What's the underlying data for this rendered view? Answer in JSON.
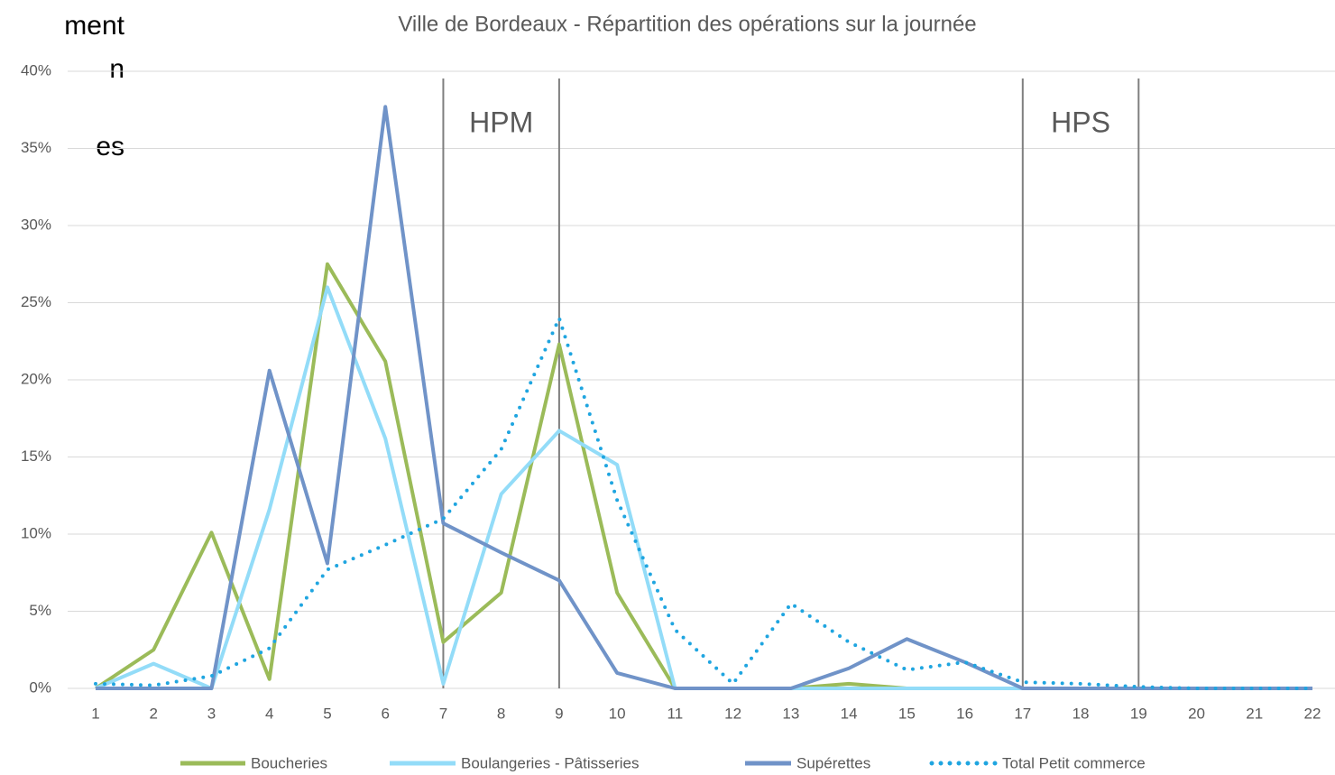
{
  "chart_data": {
    "type": "line",
    "title": "Ville de Bordeaux - Répartition des opérations sur la journée",
    "clipped_text": [
      "ment",
      "n",
      "es"
    ],
    "categories": [
      1,
      2,
      3,
      4,
      5,
      6,
      7,
      8,
      9,
      10,
      11,
      12,
      13,
      14,
      15,
      16,
      17,
      18,
      19,
      20,
      21,
      22
    ],
    "series": [
      {
        "name": "Boucheries",
        "color": "#9bbb59",
        "style": "solid",
        "values": [
          0,
          2.5,
          10.1,
          0.6,
          27.5,
          21.2,
          3.0,
          6.2,
          22.3,
          6.2,
          0,
          0,
          0,
          0.3,
          0,
          0,
          0,
          0,
          0,
          0,
          0,
          0
        ]
      },
      {
        "name": "Boulangeries - Pâtisseries",
        "color": "#93dcf8",
        "style": "solid",
        "values": [
          0,
          1.6,
          0,
          11.6,
          26.0,
          16.2,
          0.3,
          12.6,
          16.7,
          14.5,
          0,
          0,
          0,
          0,
          0,
          0,
          0,
          0,
          0,
          0,
          0,
          0
        ]
      },
      {
        "name": "Supérettes",
        "color": "#7093c8",
        "style": "solid",
        "values": [
          0,
          0,
          0,
          20.6,
          8.1,
          37.7,
          10.7,
          8.8,
          7.0,
          1.0,
          0,
          0,
          0,
          1.3,
          3.2,
          1.7,
          0,
          0,
          0,
          0,
          0,
          0
        ]
      },
      {
        "name": "Total Petit commerce",
        "color": "#1fa5e0",
        "style": "dotted",
        "values": [
          0.3,
          0.2,
          0.8,
          2.6,
          7.7,
          9.3,
          11.0,
          15.5,
          24.0,
          12.2,
          3.8,
          0.3,
          5.5,
          3.0,
          1.2,
          1.7,
          0.4,
          0.3,
          0.1,
          0,
          0,
          0
        ]
      }
    ],
    "ylim": [
      0,
      40
    ],
    "yticks": [
      {
        "value": 0,
        "label": "0%"
      },
      {
        "value": 5,
        "label": "5%"
      },
      {
        "value": 10,
        "label": "10%"
      },
      {
        "value": 15,
        "label": "15%"
      },
      {
        "value": 20,
        "label": "20%"
      },
      {
        "value": 25,
        "label": "25%"
      },
      {
        "value": 30,
        "label": "30%"
      },
      {
        "value": 35,
        "label": "35%"
      },
      {
        "value": 40,
        "label": "40%"
      }
    ],
    "grid": true,
    "vlines": [
      7,
      9,
      17,
      19
    ],
    "annotations": [
      {
        "text": "HPM",
        "x": 8
      },
      {
        "text": "HPS",
        "x": 18
      }
    ],
    "legend": "bottom"
  }
}
